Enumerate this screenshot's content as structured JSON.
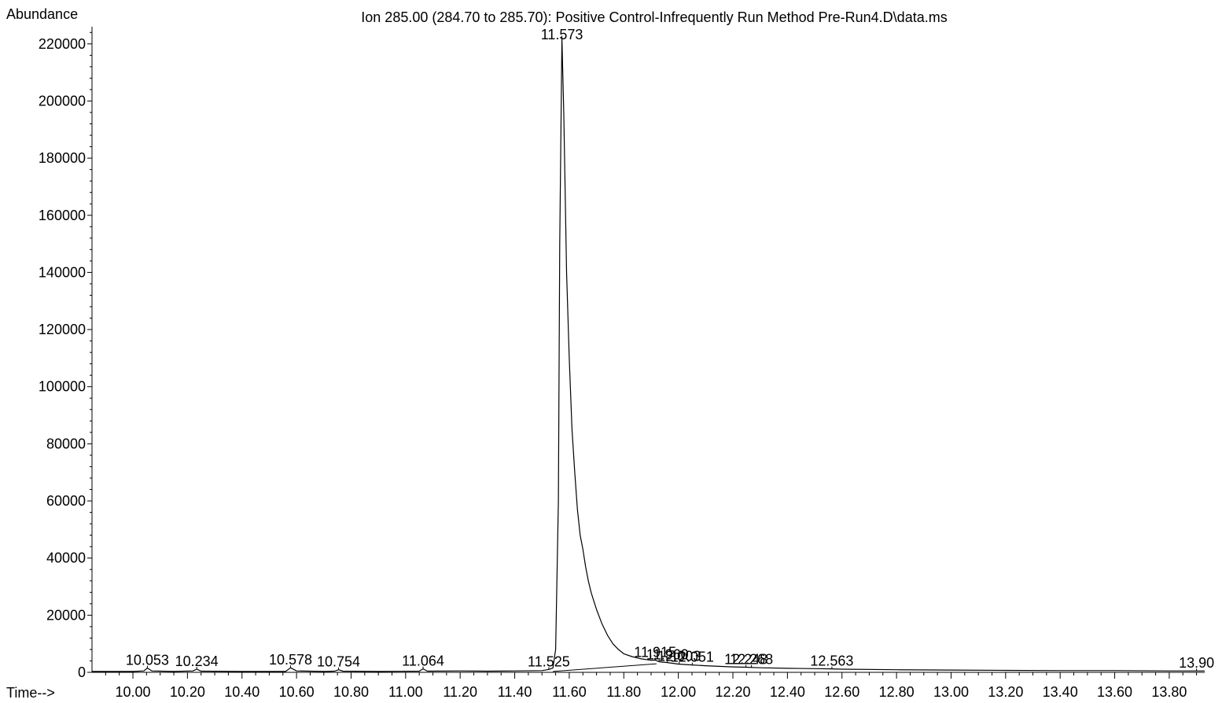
{
  "chart_data": {
    "type": "line",
    "title": "Ion 285.00 (284.70 to 285.70): Positive Control-Infrequently Run Method Pre-Run4.D\\data.ms",
    "ylabel": "Abundance",
    "xlabel": "Time-->",
    "xlim": [
      9.85,
      13.93
    ],
    "ylim": [
      0,
      226000
    ],
    "x_ticks": [
      10.0,
      10.2,
      10.4,
      10.6,
      10.8,
      11.0,
      11.2,
      11.4,
      11.6,
      11.8,
      12.0,
      12.2,
      12.4,
      12.6,
      12.8,
      13.0,
      13.2,
      13.4,
      13.6,
      13.8
    ],
    "x_tick_labels": [
      "10.00",
      "10.20",
      "10.40",
      "10.60",
      "10.80",
      "11.00",
      "11.20",
      "11.40",
      "11.60",
      "11.80",
      "12.00",
      "12.20",
      "12.40",
      "12.60",
      "12.80",
      "13.00",
      "13.20",
      "13.40",
      "13.60",
      "13.80"
    ],
    "y_ticks": [
      0,
      20000,
      40000,
      60000,
      80000,
      100000,
      120000,
      140000,
      160000,
      180000,
      200000,
      220000
    ],
    "y_tick_labels": [
      "0",
      "20000",
      "40000",
      "60000",
      "80000",
      "100000",
      "120000",
      "140000",
      "160000",
      "180000",
      "200000",
      "220000"
    ],
    "series": [
      {
        "x": [
          9.85,
          10.0,
          10.04,
          10.053,
          10.07,
          10.15,
          10.22,
          10.234,
          10.25,
          10.4,
          10.56,
          10.578,
          10.6,
          10.7,
          10.74,
          10.754,
          10.77,
          10.9,
          11.05,
          11.064,
          11.08,
          11.2,
          11.3,
          11.4,
          11.5,
          11.52,
          11.525,
          11.54,
          11.55,
          11.56,
          11.565,
          11.573,
          11.58,
          11.59,
          11.6,
          11.61,
          11.62,
          11.63,
          11.64,
          11.65,
          11.66,
          11.67,
          11.68,
          11.69,
          11.7,
          11.72,
          11.74,
          11.76,
          11.78,
          11.8,
          11.83,
          11.86,
          11.9,
          11.915,
          11.93,
          11.96,
          12.0,
          12.05,
          12.1,
          12.15,
          12.2,
          12.248,
          12.3,
          12.4,
          12.5,
          12.563,
          12.6,
          12.8,
          13.0,
          13.2,
          13.4,
          13.6,
          13.8,
          13.9,
          13.93
        ],
        "values": [
          300,
          300,
          500,
          1500,
          500,
          300,
          500,
          1100,
          400,
          300,
          300,
          1600,
          500,
          300,
          400,
          900,
          400,
          300,
          400,
          1200,
          400,
          500,
          400,
          500,
          600,
          900,
          1000,
          1500,
          8000,
          60000,
          150000,
          222000,
          195000,
          140000,
          110000,
          85000,
          70000,
          57000,
          48000,
          43000,
          37000,
          32000,
          28000,
          25000,
          22000,
          17000,
          13000,
          10000,
          8000,
          6500,
          5500,
          4800,
          4200,
          4300,
          3700,
          3400,
          2900,
          2600,
          2300,
          2100,
          1900,
          1800,
          1600,
          1400,
          1300,
          1200,
          1100,
          900,
          800,
          700,
          600,
          600,
          500,
          500,
          500
        ]
      }
    ],
    "peak_labels": [
      {
        "rt": 10.053,
        "label": "10.053",
        "height": 1500
      },
      {
        "rt": 10.234,
        "label": "10.234",
        "height": 1100
      },
      {
        "rt": 10.578,
        "label": "10.578",
        "height": 1600
      },
      {
        "rt": 10.754,
        "label": "10.754",
        "height": 900
      },
      {
        "rt": 11.064,
        "label": "11.064",
        "height": 1200
      },
      {
        "rt": 11.525,
        "label": "11.525",
        "height": 1000
      },
      {
        "rt": 11.573,
        "label": "11.573",
        "height": 222000
      },
      {
        "rt": 11.915,
        "label": "11.915",
        "height": 4300
      },
      {
        "rt": 11.96,
        "label": "11.960",
        "height": 3400
      },
      {
        "rt": 12.003,
        "label": "12.003",
        "height": 2900
      },
      {
        "rt": 12.051,
        "label": "12.051",
        "height": 2600
      },
      {
        "rt": 12.248,
        "label": "12.248",
        "height": 1800
      },
      {
        "rt": 12.268,
        "label": "12.268",
        "height": 1750
      },
      {
        "rt": 12.563,
        "label": "12.563",
        "height": 1200
      },
      {
        "rt": 13.9,
        "label": "13.90",
        "height": 500
      }
    ],
    "baseline_segments": [
      {
        "x": [
          11.54,
          11.92
        ],
        "y": [
          300,
          3000
        ]
      }
    ],
    "grid": false,
    "legend": "none"
  }
}
